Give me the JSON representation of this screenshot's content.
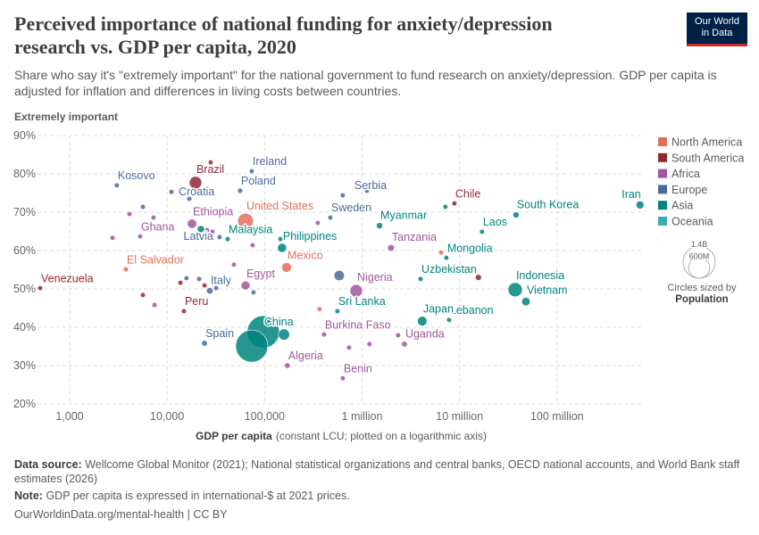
{
  "chart_data": {
    "type": "scatter",
    "title": "Perceived importance of national funding for anxiety/depression research vs. GDP per capita, 2020",
    "subtitle": "Share who say it's \"extremely important\" for the national government to fund research on anxiety/depression. GDP per capita is adjusted for inflation and differences in living costs between countries.",
    "y_label": "Extremely important",
    "x_label": "GDP per capita",
    "x_label_note": "(constant LCU; plotted on a logarithmic axis)",
    "x_scale": "log",
    "xlim": [
      468,
      760000000
    ],
    "ylim": [
      20,
      90
    ],
    "xticks": [
      {
        "value": 1000,
        "label": "1,000"
      },
      {
        "value": 10000,
        "label": "10,000"
      },
      {
        "value": 100000,
        "label": "100,000"
      },
      {
        "value": 1000000,
        "label": "1 million"
      },
      {
        "value": 10000000,
        "label": "10 million"
      },
      {
        "value": 100000000,
        "label": "100 million"
      }
    ],
    "yticks": [
      {
        "value": 20,
        "label": "20%"
      },
      {
        "value": 30,
        "label": "30%"
      },
      {
        "value": 40,
        "label": "40%"
      },
      {
        "value": 50,
        "label": "50%"
      },
      {
        "value": 60,
        "label": "60%"
      },
      {
        "value": 70,
        "label": "70%"
      },
      {
        "value": 80,
        "label": "80%"
      },
      {
        "value": 90,
        "label": "90%"
      }
    ],
    "grid": true,
    "legend_position": "right",
    "size_legend": {
      "title": "Circles sized by",
      "variable": "Population",
      "values": [
        {
          "value": 1400000000,
          "label": "1.4B"
        },
        {
          "value": 600000000,
          "label": "600M"
        }
      ]
    },
    "series": [
      {
        "name": "North America",
        "color": "#e56e5a",
        "labels": [
          "United States",
          "Mexico",
          "El Salvador",
          null,
          null
        ],
        "x": [
          63700,
          168000,
          3780,
          366000,
          6460000
        ],
        "values": [
          67.7,
          55.6,
          55.1,
          44.7,
          59.5
        ],
        "sizes": [
          331000000,
          128000000,
          6300000,
          10000000,
          5000000
        ]
      },
      {
        "name": "South America",
        "color": "#932834",
        "labels": [
          "Brazil",
          "Chile",
          "Venezuela",
          "Peru",
          null,
          null,
          null,
          null,
          null
        ],
        "x": [
          19550,
          8850000,
          499,
          14860,
          28000,
          13700,
          24200,
          5640,
          15600000
        ],
        "values": [
          77.7,
          72.3,
          50.2,
          44.2,
          83.0,
          51.6,
          50.9,
          48.4,
          53.0
        ],
        "sizes": [
          213000000,
          19000000,
          28000000,
          33000000,
          5000000,
          17000000,
          3500000,
          3000000,
          51000000
        ]
      },
      {
        "name": "Africa",
        "color": "#a2559c",
        "labels": [
          "Ethiopia",
          "Ghana",
          "Egypt",
          "Nigeria",
          "Tanzania",
          "Burkina Faso",
          "Uganda",
          "Algeria",
          "Benin",
          null,
          null,
          null,
          null,
          null,
          null,
          null,
          null,
          null,
          null,
          null,
          null
        ],
        "x": [
          18000,
          5280,
          63700,
          871000,
          1980000,
          407000,
          2720000,
          171000,
          634000,
          4110,
          7260,
          2750,
          29200,
          7420,
          351000,
          735000,
          1190000,
          2340000,
          75400,
          48400,
          25700
        ],
        "values": [
          67.0,
          63.7,
          50.9,
          49.5,
          60.7,
          38.1,
          35.6,
          30.0,
          26.7,
          69.5,
          68.6,
          63.3,
          64.9,
          45.8,
          67.2,
          34.7,
          35.6,
          37.9,
          61.4,
          56.3,
          65.3
        ],
        "sizes": [
          118000000,
          32000000,
          107000000,
          213000000,
          63000000,
          22000000,
          46000000,
          44000000,
          13000000,
          8000000,
          6000000,
          9000000,
          12000000,
          5000000,
          15000000,
          7000000,
          10000000,
          12000000,
          20000000,
          9000000,
          14000000
        ]
      },
      {
        "name": "Europe",
        "color": "#4c6a9c",
        "labels": [
          "Kosovo",
          "Croatia",
          "Ireland",
          "Poland",
          "Serbia",
          "Sweden",
          "Latvia",
          "Italy",
          "Spain",
          null,
          null,
          null,
          null,
          null,
          null,
          null,
          null
        ],
        "x": [
          3050,
          11070,
          73800,
          56100,
          634000,
          472000,
          34500,
          27400,
          24200,
          583000,
          5640,
          16900,
          21300,
          15800,
          31800,
          76900,
          1120000
        ],
        "values": [
          77.0,
          75.3,
          80.7,
          75.6,
          74.4,
          68.6,
          63.5,
          49.5,
          35.8,
          53.5,
          71.4,
          73.5,
          52.6,
          52.8,
          50.2,
          49.1,
          75.6
        ],
        "sizes": [
          1800000,
          4000000,
          5000000,
          38000000,
          7000000,
          10000000,
          1900000,
          59000000,
          47000000,
          144000000,
          3000000,
          3000000,
          5000000,
          2000000,
          2000000,
          2000000,
          10000000
        ]
      },
      {
        "name": "Asia",
        "color": "#00847e",
        "labels": [
          "Iran",
          "South Korea",
          "Laos",
          "Myanmar",
          "Malaysia",
          "Philippines",
          "Mongolia",
          "Indonesia",
          "Uzbekistan",
          "Lebanon",
          "Vietnam",
          "Sri Lanka",
          "Japan",
          "China",
          null,
          null,
          null,
          null,
          null
        ],
        "x": [
          710000000,
          37900000,
          17000000,
          1510000,
          41800,
          151000,
          7310000,
          37200000,
          3980000,
          7800000,
          47900000,
          558000,
          4140000,
          97000,
          73800,
          158000,
          22200,
          145000,
          7160000
        ],
        "values": [
          71.9,
          69.3,
          64.9,
          66.5,
          63.0,
          60.7,
          58.1,
          49.8,
          52.6,
          41.9,
          46.7,
          44.2,
          41.6,
          38.8,
          35.1,
          38.1,
          65.6,
          63.0,
          71.4
        ],
        "sizes": [
          88000000,
          52000000,
          7000000,
          54000000,
          33000000,
          113000000,
          3300000,
          273000000,
          35000000,
          5500000,
          98000000,
          22000000,
          125000000,
          1410000000,
          1400000000,
          170000000,
          70000000,
          30000000,
          5000000
        ]
      },
      {
        "name": "Oceania",
        "color": "#38aaba",
        "labels": [],
        "x": [],
        "values": [],
        "sizes": []
      }
    ]
  },
  "logo": [
    "Our World",
    "in Data"
  ],
  "footer": {
    "source_label": "Data source:",
    "source": "Wellcome Global Monitor (2021); National statistical organizations and central banks, OECD national accounts, and World Bank staff estimates (2026)",
    "note_label": "Note:",
    "note": "GDP per capita is expressed in international-$ at 2021 prices.",
    "url": "OurWorldinData.org/mental-health | CC BY"
  }
}
